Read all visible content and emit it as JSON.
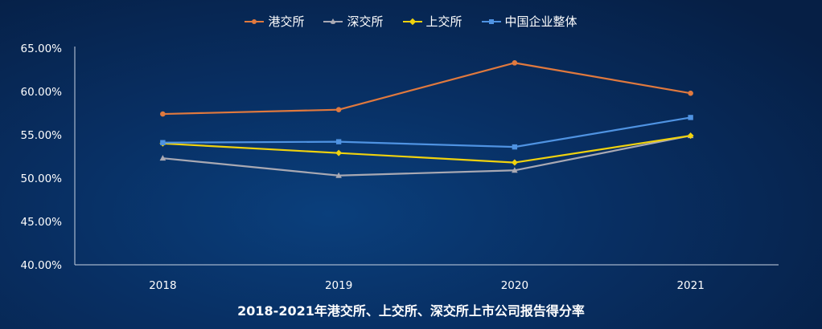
{
  "chart_data": {
    "type": "line",
    "title": "2018-2021年港交所、上交所、深交所上市公司报告得分率",
    "categories": [
      "2018",
      "2019",
      "2020",
      "2021"
    ],
    "y_tick_labels": [
      "40.00%",
      "45.00%",
      "50.00%",
      "55.00%",
      "60.00%",
      "65.00%"
    ],
    "ylim": [
      40,
      65
    ],
    "yticks": [
      40,
      45,
      50,
      55,
      60,
      65
    ],
    "legend_position": "top-center",
    "series": [
      {
        "name": "港交所",
        "color": "#e0793e",
        "marker": "circle",
        "values": [
          57.4,
          57.9,
          63.3,
          59.8
        ]
      },
      {
        "name": "深交所",
        "color": "#a9a9b3",
        "marker": "triangle",
        "values": [
          52.3,
          50.3,
          50.9,
          54.9
        ]
      },
      {
        "name": "上交所",
        "color": "#f0d20e",
        "marker": "diamond",
        "values": [
          54.0,
          52.9,
          51.8,
          54.9
        ]
      },
      {
        "name": "中国企业整体",
        "color": "#4f93e2",
        "marker": "square",
        "values": [
          54.1,
          54.2,
          53.6,
          57.0
        ]
      }
    ]
  }
}
